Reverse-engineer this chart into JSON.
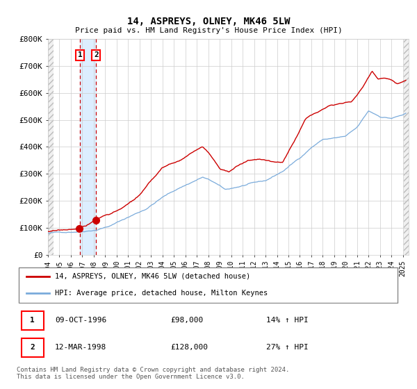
{
  "title": "14, ASPREYS, OLNEY, MK46 5LW",
  "subtitle": "Price paid vs. HM Land Registry's House Price Index (HPI)",
  "sale1_label": "09-OCT-1996",
  "sale1_price": 98000,
  "sale1_hpi_pct": "14% ↑ HPI",
  "sale2_label": "12-MAR-1998",
  "sale2_price": 128000,
  "sale2_hpi_pct": "27% ↑ HPI",
  "legend_red": "14, ASPREYS, OLNEY, MK46 5LW (detached house)",
  "legend_blue": "HPI: Average price, detached house, Milton Keynes",
  "footnote": "Contains HM Land Registry data © Crown copyright and database right 2024.\nThis data is licensed under the Open Government Licence v3.0.",
  "ylim": [
    0,
    800000
  ],
  "yticks": [
    0,
    100000,
    200000,
    300000,
    400000,
    500000,
    600000,
    700000,
    800000
  ],
  "ytick_labels": [
    "£0",
    "£100K",
    "£200K",
    "£300K",
    "£400K",
    "£500K",
    "£600K",
    "£700K",
    "£800K"
  ],
  "grid_color": "#cccccc",
  "bg_color": "#ffffff",
  "red_line_color": "#cc0000",
  "blue_line_color": "#7aabdb",
  "vline_color": "#cc0000",
  "vband_color": "#ddeeff",
  "marker_color": "#cc0000",
  "hatch_color": "#bbbbbb"
}
